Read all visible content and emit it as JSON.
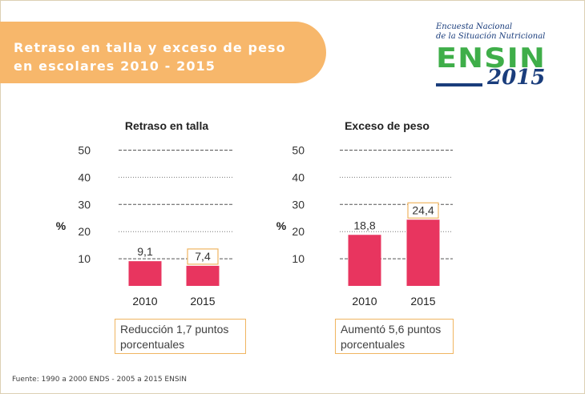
{
  "title": "Retraso en talla y exceso de peso en escolares 2010 - 2015",
  "logo": {
    "line1": "Encuesta Nacional",
    "line2": "de la Situación Nutricional",
    "name": "ENSIN",
    "year": "2015"
  },
  "chart_data": [
    {
      "type": "bar",
      "title": "Retraso en talla",
      "ylabel": "%",
      "categories": [
        "2010",
        "2015"
      ],
      "values": [
        9.1,
        7.4
      ],
      "value_labels": [
        "9,1",
        "7,4"
      ],
      "yticks": [
        "10",
        "20",
        "30",
        "40",
        "50"
      ],
      "ylim": [
        0,
        53
      ],
      "grid": true,
      "bar_color": "#e8355f",
      "highlight_label": 1,
      "note": "Reducción 1,7 puntos porcentuales"
    },
    {
      "type": "bar",
      "title": "Exceso de peso",
      "ylabel": "%",
      "categories": [
        "2010",
        "2015"
      ],
      "values": [
        18.8,
        24.4
      ],
      "value_labels": [
        "18,8",
        "24,4"
      ],
      "yticks": [
        "10",
        "20",
        "30",
        "40",
        "50"
      ],
      "ylim": [
        0,
        53
      ],
      "grid": true,
      "bar_color": "#e8355f",
      "highlight_label": 1,
      "note": "Aumentó 5,6 puntos porcentuales"
    }
  ],
  "source": "Fuente: 1990 a 2000 ENDS - 2005 a 2015 ENSIN",
  "colors": {
    "title_bg": "#f7b76b",
    "bar": "#e8355f",
    "highlight_border": "#f0b561",
    "logo_green": "#3fae49",
    "logo_blue": "#1a3d7c"
  }
}
